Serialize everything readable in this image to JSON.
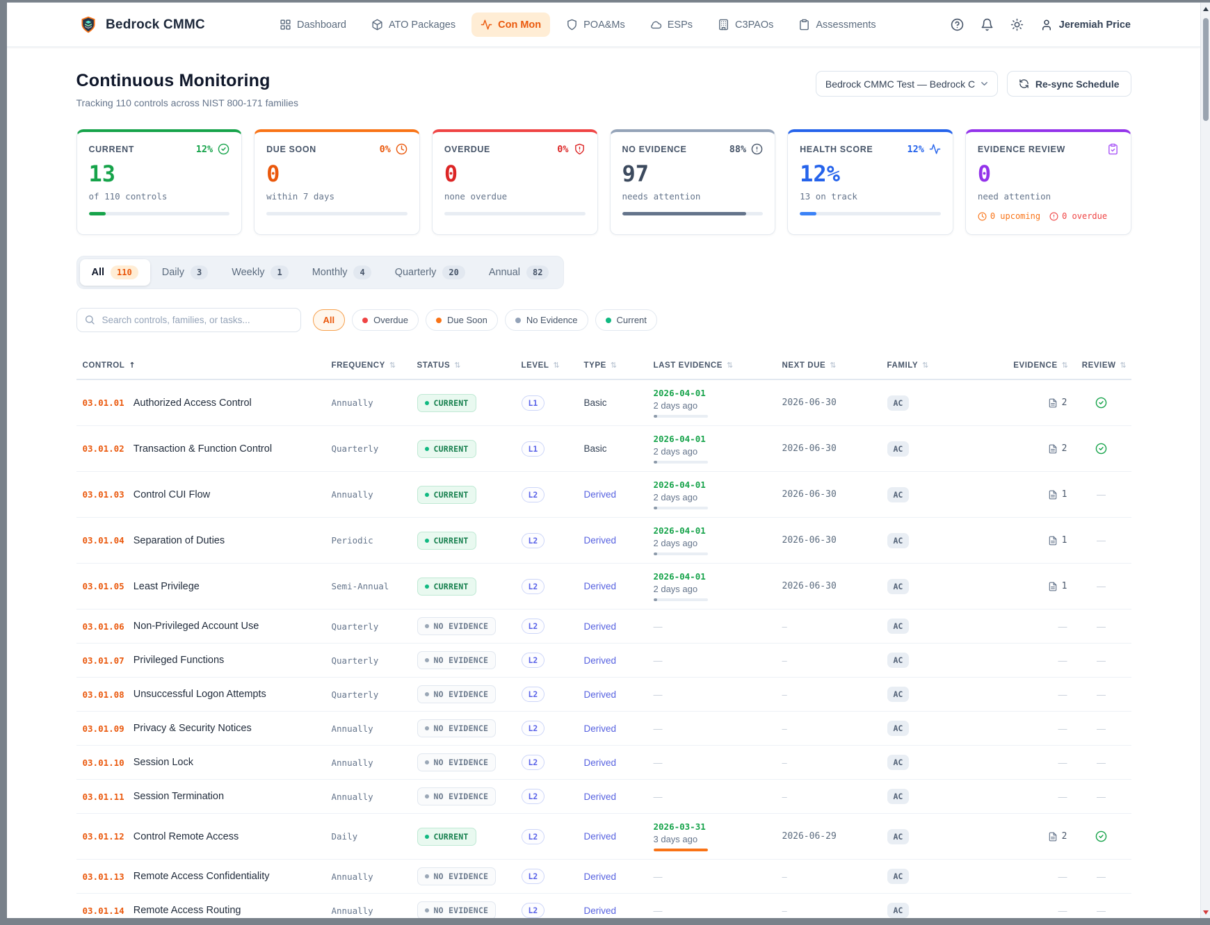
{
  "app": {
    "brand": "Bedrock CMMC",
    "user": "Jeremiah Price",
    "header_icons": [
      "help-icon",
      "bell-icon",
      "theme-icon",
      "user-icon"
    ]
  },
  "nav": [
    {
      "label": "Dashboard",
      "icon": "dashboard-icon",
      "active": false
    },
    {
      "label": "ATO Packages",
      "icon": "package-icon",
      "active": false
    },
    {
      "label": "Con Mon",
      "icon": "pulse-icon",
      "active": true
    },
    {
      "label": "POA&Ms",
      "icon": "shield-icon",
      "active": false
    },
    {
      "label": "ESPs",
      "icon": "cloud-icon",
      "active": false
    },
    {
      "label": "C3PAOs",
      "icon": "building-icon",
      "active": false
    },
    {
      "label": "Assessments",
      "icon": "clipboard-icon",
      "active": false
    }
  ],
  "page": {
    "title": "Continuous Monitoring",
    "subtitle": "Tracking 110 controls across NIST 800-171 families",
    "package_select": "Bedrock CMMC Test — Bedrock CM",
    "resync_label": "Re-sync Schedule"
  },
  "stats": [
    {
      "label": "CURRENT",
      "pct": "12%",
      "icon": "check-circle-icon",
      "accent": "#16a34a",
      "pct_color": "#16a34a",
      "value": "13",
      "value_color": "#16a34a",
      "caption": "of 110 controls",
      "bar_pct": 12,
      "bar_color": "#16a34a"
    },
    {
      "label": "DUE SOON",
      "pct": "0%",
      "icon": "clock-icon",
      "accent": "#f97316",
      "pct_color": "#ea580c",
      "value": "0",
      "value_color": "#ea580c",
      "caption": "within 7 days",
      "bar_pct": 0,
      "bar_color": "#f97316"
    },
    {
      "label": "OVERDUE",
      "pct": "0%",
      "icon": "shield-alert-icon",
      "accent": "#ef4444",
      "pct_color": "#dc2626",
      "value": "0",
      "value_color": "#dc2626",
      "caption": "none overdue",
      "bar_pct": 0,
      "bar_color": "#ef4444"
    },
    {
      "label": "NO EVIDENCE",
      "pct": "88%",
      "icon": "alert-circle-icon",
      "accent": "#94a3b8",
      "pct_color": "#475569",
      "value": "97",
      "value_color": "#3c4a5e",
      "caption": "needs attention",
      "bar_pct": 88,
      "bar_color": "#64748b"
    },
    {
      "label": "HEALTH SCORE",
      "pct": "12%",
      "icon": "pulse-icon",
      "accent": "#2563eb",
      "pct_color": "#2563eb",
      "value": "12%",
      "value_color": "#2563eb",
      "caption": "13 on track",
      "bar_pct": 12,
      "bar_color": "#3b82f6"
    },
    {
      "label": "EVIDENCE REVIEW",
      "icon": "clipboard-check-icon",
      "accent": "#9333ea",
      "icon_color": "#a855f7",
      "value": "0",
      "value_color": "#9333ea",
      "caption": "need attention",
      "upcoming_label": "0 upcoming",
      "overdue_label": "0 overdue"
    }
  ],
  "tabs": [
    {
      "label": "All",
      "count": "110",
      "active": true
    },
    {
      "label": "Daily",
      "count": "3",
      "active": false
    },
    {
      "label": "Weekly",
      "count": "1",
      "active": false
    },
    {
      "label": "Monthly",
      "count": "4",
      "active": false
    },
    {
      "label": "Quarterly",
      "count": "20",
      "active": false
    },
    {
      "label": "Annual",
      "count": "82",
      "active": false
    }
  ],
  "search": {
    "placeholder": "Search controls, families, or tasks..."
  },
  "filters": [
    {
      "label": "All",
      "active": true,
      "dot": null
    },
    {
      "label": "Overdue",
      "active": false,
      "dot": "#ef4444"
    },
    {
      "label": "Due Soon",
      "active": false,
      "dot": "#f97316"
    },
    {
      "label": "No Evidence",
      "active": false,
      "dot": "#94a3b8"
    },
    {
      "label": "Current",
      "active": false,
      "dot": "#10b981"
    }
  ],
  "table": {
    "empty_dash": "—",
    "columns": [
      {
        "label": "CONTROL",
        "key": "control",
        "sort": "asc"
      },
      {
        "label": "FREQUENCY",
        "key": "frequency",
        "sort": "none"
      },
      {
        "label": "STATUS",
        "key": "status",
        "sort": "none"
      },
      {
        "label": "LEVEL",
        "key": "level",
        "sort": "none"
      },
      {
        "label": "TYPE",
        "key": "type",
        "sort": "none"
      },
      {
        "label": "LAST EVIDENCE",
        "key": "last",
        "sort": "none"
      },
      {
        "label": "NEXT DUE",
        "key": "due",
        "sort": "none"
      },
      {
        "label": "FAMILY",
        "key": "family",
        "sort": "none"
      },
      {
        "label": "EVIDENCE",
        "key": "evidence",
        "sort": "none"
      },
      {
        "label": "REVIEW",
        "key": "review",
        "sort": "none"
      }
    ],
    "rows": [
      {
        "id": "03.01.01",
        "name": "Authorized Access Control",
        "frequency": "Annually",
        "status": "CURRENT",
        "level": "L1",
        "type": "Basic",
        "last_date": "2026-04-01",
        "last_ago": "2 days ago",
        "bar_pct": 7,
        "bar_color": "#8b99a9",
        "next_due": "2026-06-30",
        "family": "AC",
        "evidence": "2",
        "review": true
      },
      {
        "id": "03.01.02",
        "name": "Transaction & Function Control",
        "frequency": "Quarterly",
        "status": "CURRENT",
        "level": "L1",
        "type": "Basic",
        "last_date": "2026-04-01",
        "last_ago": "2 days ago",
        "bar_pct": 7,
        "bar_color": "#8b99a9",
        "next_due": "2026-06-30",
        "family": "AC",
        "evidence": "2",
        "review": true
      },
      {
        "id": "03.01.03",
        "name": "Control CUI Flow",
        "frequency": "Annually",
        "status": "CURRENT",
        "level": "L2",
        "type": "Derived",
        "last_date": "2026-04-01",
        "last_ago": "2 days ago",
        "bar_pct": 7,
        "bar_color": "#8b99a9",
        "next_due": "2026-06-30",
        "family": "AC",
        "evidence": "1",
        "review": false
      },
      {
        "id": "03.01.04",
        "name": "Separation of Duties",
        "frequency": "Periodic",
        "status": "CURRENT",
        "level": "L2",
        "type": "Derived",
        "last_date": "2026-04-01",
        "last_ago": "2 days ago",
        "bar_pct": 7,
        "bar_color": "#8b99a9",
        "next_due": "2026-06-30",
        "family": "AC",
        "evidence": "1",
        "review": false
      },
      {
        "id": "03.01.05",
        "name": "Least Privilege",
        "frequency": "Semi-Annual",
        "status": "CURRENT",
        "level": "L2",
        "type": "Derived",
        "last_date": "2026-04-01",
        "last_ago": "2 days ago",
        "bar_pct": 7,
        "bar_color": "#8b99a9",
        "next_due": "2026-06-30",
        "family": "AC",
        "evidence": "1",
        "review": false
      },
      {
        "id": "03.01.06",
        "name": "Non-Privileged Account Use",
        "frequency": "Quarterly",
        "status": "NO EVIDENCE",
        "level": "L2",
        "type": "Derived",
        "last_date": "—",
        "last_ago": null,
        "next_due": "–",
        "family": "AC",
        "evidence": null,
        "review": null
      },
      {
        "id": "03.01.07",
        "name": "Privileged Functions",
        "frequency": "Quarterly",
        "status": "NO EVIDENCE",
        "level": "L2",
        "type": "Derived",
        "last_date": "—",
        "last_ago": null,
        "next_due": "–",
        "family": "AC",
        "evidence": null,
        "review": null
      },
      {
        "id": "03.01.08",
        "name": "Unsuccessful Logon Attempts",
        "frequency": "Quarterly",
        "status": "NO EVIDENCE",
        "level": "L2",
        "type": "Derived",
        "last_date": "—",
        "last_ago": null,
        "next_due": "–",
        "family": "AC",
        "evidence": null,
        "review": null
      },
      {
        "id": "03.01.09",
        "name": "Privacy & Security Notices",
        "frequency": "Annually",
        "status": "NO EVIDENCE",
        "level": "L2",
        "type": "Derived",
        "last_date": "—",
        "last_ago": null,
        "next_due": "–",
        "family": "AC",
        "evidence": null,
        "review": null
      },
      {
        "id": "03.01.10",
        "name": "Session Lock",
        "frequency": "Annually",
        "status": "NO EVIDENCE",
        "level": "L2",
        "type": "Derived",
        "last_date": "—",
        "last_ago": null,
        "next_due": "–",
        "family": "AC",
        "evidence": null,
        "review": null
      },
      {
        "id": "03.01.11",
        "name": "Session Termination",
        "frequency": "Annually",
        "status": "NO EVIDENCE",
        "level": "L2",
        "type": "Derived",
        "last_date": "—",
        "last_ago": null,
        "next_due": "–",
        "family": "AC",
        "evidence": null,
        "review": null
      },
      {
        "id": "03.01.12",
        "name": "Control Remote Access",
        "frequency": "Daily",
        "status": "CURRENT",
        "level": "L2",
        "type": "Derived",
        "last_date": "2026-03-31",
        "last_ago": "3 days ago",
        "bar_pct": 100,
        "bar_color": "#f97316",
        "next_due": "2026-06-29",
        "family": "AC",
        "evidence": "2",
        "review": true
      },
      {
        "id": "03.01.13",
        "name": "Remote Access Confidentiality",
        "frequency": "Annually",
        "status": "NO EVIDENCE",
        "level": "L2",
        "type": "Derived",
        "last_date": "—",
        "last_ago": null,
        "next_due": "–",
        "family": "AC",
        "evidence": null,
        "review": null
      },
      {
        "id": "03.01.14",
        "name": "Remote Access Routing",
        "frequency": "Annually",
        "status": "NO EVIDENCE",
        "level": "L2",
        "type": "Derived",
        "last_date": "—",
        "last_ago": null,
        "next_due": "–",
        "family": "AC",
        "evidence": null,
        "review": null
      }
    ]
  }
}
